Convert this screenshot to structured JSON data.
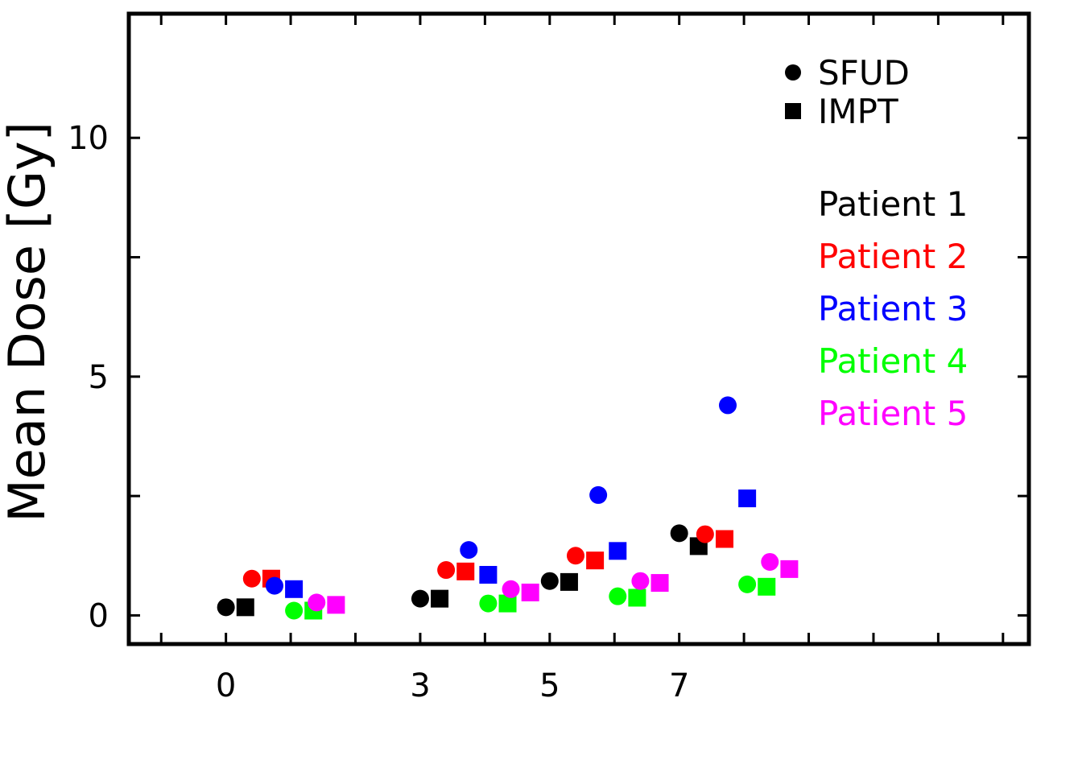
{
  "chart_data": {
    "type": "scatter",
    "title": "",
    "ylabel": "Mean Dose [Gy]",
    "xlabel": "",
    "ylim": [
      -0.6,
      12.6
    ],
    "yticks": [
      0,
      5,
      10
    ],
    "xticks": [
      "0",
      "3",
      "5",
      "7"
    ],
    "x_positions": [
      0,
      3,
      5,
      7
    ],
    "xlim": [
      -1.5,
      12.4
    ],
    "grid": false,
    "marker_legend": [
      {
        "label": "SFUD",
        "marker": "circle"
      },
      {
        "label": "IMPT",
        "marker": "square"
      }
    ],
    "series": [
      {
        "name": "Patient 1",
        "color": "#000000",
        "sfud": [
          {
            "x": 0,
            "y": 0.17
          },
          {
            "x": 3,
            "y": 0.35
          },
          {
            "x": 5,
            "y": 0.72
          },
          {
            "x": 7,
            "y": 1.72
          }
        ],
        "impt": [
          {
            "x": 0,
            "y": 0.17
          },
          {
            "x": 3,
            "y": 0.35
          },
          {
            "x": 5,
            "y": 0.7
          },
          {
            "x": 7,
            "y": 1.45
          }
        ]
      },
      {
        "name": "Patient 2",
        "color": "#ff0000",
        "sfud": [
          {
            "x": 0,
            "y": 0.77
          },
          {
            "x": 3,
            "y": 0.95
          },
          {
            "x": 5,
            "y": 1.25
          },
          {
            "x": 7,
            "y": 1.7
          }
        ],
        "impt": [
          {
            "x": 0,
            "y": 0.77
          },
          {
            "x": 3,
            "y": 0.92
          },
          {
            "x": 5,
            "y": 1.15
          },
          {
            "x": 7,
            "y": 1.6
          }
        ]
      },
      {
        "name": "Patient 3",
        "color": "#0000ff",
        "sfud": [
          {
            "x": 0,
            "y": 0.62
          },
          {
            "x": 3,
            "y": 1.37
          },
          {
            "x": 5,
            "y": 2.52
          },
          {
            "x": 7,
            "y": 4.4
          }
        ],
        "impt": [
          {
            "x": 0,
            "y": 0.55
          },
          {
            "x": 3,
            "y": 0.85
          },
          {
            "x": 5,
            "y": 1.35
          },
          {
            "x": 7,
            "y": 2.45
          }
        ]
      },
      {
        "name": "Patient 4",
        "color": "#00ff00",
        "sfud": [
          {
            "x": 0,
            "y": 0.1
          },
          {
            "x": 3,
            "y": 0.25
          },
          {
            "x": 5,
            "y": 0.4
          },
          {
            "x": 7,
            "y": 0.65
          }
        ],
        "impt": [
          {
            "x": 0,
            "y": 0.1
          },
          {
            "x": 3,
            "y": 0.25
          },
          {
            "x": 5,
            "y": 0.37
          },
          {
            "x": 7,
            "y": 0.6
          }
        ]
      },
      {
        "name": "Patient 5",
        "color": "#ff00ff",
        "sfud": [
          {
            "x": 0,
            "y": 0.27
          },
          {
            "x": 3,
            "y": 0.55
          },
          {
            "x": 5,
            "y": 0.72
          },
          {
            "x": 7,
            "y": 1.12
          }
        ],
        "impt": [
          {
            "x": 0,
            "y": 0.22
          },
          {
            "x": 3,
            "y": 0.48
          },
          {
            "x": 5,
            "y": 0.68
          },
          {
            "x": 7,
            "y": 0.97
          }
        ]
      }
    ]
  }
}
